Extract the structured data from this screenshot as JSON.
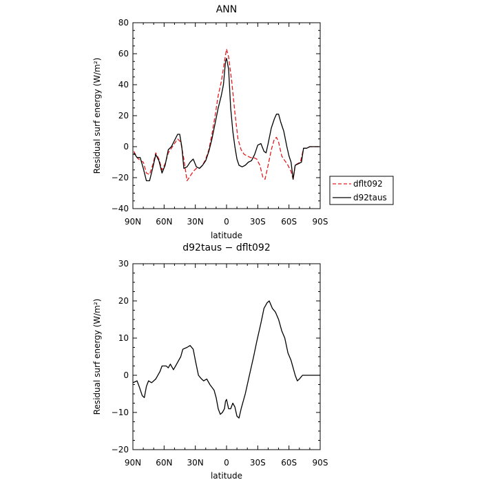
{
  "chart_data": [
    {
      "type": "line",
      "title": "ANN",
      "xlabel": "latitude",
      "ylabel": "Residual surf energy (W/m²)",
      "xlim": [
        90,
        -90
      ],
      "ylim": [
        -40,
        80
      ],
      "x_ticks": [
        {
          "value": 90,
          "label": "90N"
        },
        {
          "value": 60,
          "label": "60N"
        },
        {
          "value": 30,
          "label": "30N"
        },
        {
          "value": 0,
          "label": "0"
        },
        {
          "value": -30,
          "label": "30S"
        },
        {
          "value": -60,
          "label": "60S"
        },
        {
          "value": -90,
          "label": "90S"
        }
      ],
      "y_ticks": [
        -40,
        -20,
        0,
        20,
        40,
        60,
        80
      ],
      "legend": {
        "placement": "right, outside plot"
      },
      "series": [
        {
          "name": "dflt092",
          "color": "#e31a1c",
          "dash": "dashed",
          "points": [
            [
              89,
              -3
            ],
            [
              86,
              -7
            ],
            [
              83,
              -9
            ],
            [
              80,
              -10
            ],
            [
              77,
              -17
            ],
            [
              74,
              -18
            ],
            [
              71,
              -12
            ],
            [
              68,
              -4
            ],
            [
              65,
              -8
            ],
            [
              62,
              -15
            ],
            [
              59,
              -11
            ],
            [
              56,
              -4
            ],
            [
              53,
              -1
            ],
            [
              50,
              2
            ],
            [
              47,
              5
            ],
            [
              44,
              3
            ],
            [
              41,
              -8
            ],
            [
              38,
              -22
            ],
            [
              35,
              -19
            ],
            [
              32,
              -16
            ],
            [
              29,
              -14
            ],
            [
              26,
              -14
            ],
            [
              23,
              -12
            ],
            [
              20,
              -8
            ],
            [
              17,
              -2
            ],
            [
              14,
              8
            ],
            [
              11,
              20
            ],
            [
              8,
              33
            ],
            [
              5,
              42
            ],
            [
              2,
              55
            ],
            [
              0,
              63
            ],
            [
              -2,
              58
            ],
            [
              -5,
              42
            ],
            [
              -8,
              22
            ],
            [
              -11,
              5
            ],
            [
              -14,
              -2
            ],
            [
              -17,
              -5
            ],
            [
              -20,
              -6
            ],
            [
              -23,
              -7
            ],
            [
              -26,
              -7
            ],
            [
              -29,
              -8
            ],
            [
              -32,
              -12
            ],
            [
              -35,
              -20
            ],
            [
              -37,
              -21
            ],
            [
              -40,
              -12
            ],
            [
              -43,
              -2
            ],
            [
              -46,
              5
            ],
            [
              -48,
              6
            ],
            [
              -50,
              3
            ],
            [
              -53,
              -6
            ],
            [
              -56,
              -9
            ],
            [
              -59,
              -12
            ],
            [
              -62,
              -16
            ],
            [
              -64,
              -21
            ],
            [
              -66,
              -12
            ],
            [
              -68,
              -11
            ],
            [
              -71,
              -10
            ],
            [
              -74,
              -1
            ],
            [
              -77,
              -1
            ],
            [
              -80,
              0
            ],
            [
              -84,
              0
            ],
            [
              -87,
              0
            ],
            [
              -89,
              0
            ]
          ]
        },
        {
          "name": "d92taus",
          "color": "#000000",
          "dash": "solid",
          "points": [
            [
              89,
              -4
            ],
            [
              86,
              -7
            ],
            [
              83,
              -7
            ],
            [
              80,
              -14
            ],
            [
              77,
              -22
            ],
            [
              74,
              -22
            ],
            [
              71,
              -14
            ],
            [
              68,
              -5
            ],
            [
              65,
              -9
            ],
            [
              62,
              -17
            ],
            [
              59,
              -12
            ],
            [
              56,
              -2
            ],
            [
              53,
              0
            ],
            [
              50,
              4
            ],
            [
              47,
              8
            ],
            [
              45,
              8
            ],
            [
              43,
              0
            ],
            [
              41,
              -14
            ],
            [
              38,
              -13
            ],
            [
              35,
              -10
            ],
            [
              32,
              -8
            ],
            [
              29,
              -13
            ],
            [
              26,
              -14
            ],
            [
              23,
              -12
            ],
            [
              20,
              -9
            ],
            [
              17,
              -3
            ],
            [
              14,
              5
            ],
            [
              11,
              15
            ],
            [
              8,
              25
            ],
            [
              5,
              33
            ],
            [
              3,
              40
            ],
            [
              1,
              55
            ],
            [
              0,
              57
            ],
            [
              -2,
              50
            ],
            [
              -4,
              25
            ],
            [
              -6,
              10
            ],
            [
              -8,
              0
            ],
            [
              -10,
              -8
            ],
            [
              -12,
              -12
            ],
            [
              -15,
              -13
            ],
            [
              -18,
              -12
            ],
            [
              -21,
              -10
            ],
            [
              -24,
              -9
            ],
            [
              -27,
              -5
            ],
            [
              -30,
              1
            ],
            [
              -33,
              2
            ],
            [
              -36,
              -3
            ],
            [
              -38,
              -4
            ],
            [
              -40,
              2
            ],
            [
              -43,
              12
            ],
            [
              -46,
              18
            ],
            [
              -48,
              21
            ],
            [
              -50,
              21
            ],
            [
              -52,
              16
            ],
            [
              -55,
              10
            ],
            [
              -58,
              0
            ],
            [
              -60,
              -6
            ],
            [
              -62,
              -10
            ],
            [
              -64,
              -21
            ],
            [
              -66,
              -12
            ],
            [
              -69,
              -11
            ],
            [
              -72,
              -10
            ],
            [
              -74,
              -1
            ],
            [
              -77,
              -1
            ],
            [
              -80,
              0
            ],
            [
              -84,
              0
            ],
            [
              -87,
              0
            ],
            [
              -89,
              0
            ]
          ]
        }
      ]
    },
    {
      "type": "line",
      "title": "d92taus − dflt092",
      "xlabel": "latitude",
      "ylabel": "Residual surf energy (W/m²)",
      "xlim": [
        90,
        -90
      ],
      "ylim": [
        -20,
        30
      ],
      "x_ticks": [
        {
          "value": 90,
          "label": "90N"
        },
        {
          "value": 60,
          "label": "60N"
        },
        {
          "value": 30,
          "label": "30N"
        },
        {
          "value": 0,
          "label": "0"
        },
        {
          "value": -30,
          "label": "30S"
        },
        {
          "value": -60,
          "label": "60S"
        },
        {
          "value": -90,
          "label": "90S"
        }
      ],
      "y_ticks": [
        -20,
        -10,
        0,
        10,
        20,
        30
      ],
      "series": [
        {
          "color": "#000000",
          "dash": "solid",
          "points": [
            [
              90,
              -2
            ],
            [
              86,
              -1.5
            ],
            [
              84,
              -3
            ],
            [
              81,
              -5.5
            ],
            [
              79,
              -6
            ],
            [
              77,
              -3
            ],
            [
              75,
              -1.5
            ],
            [
              72,
              -2
            ],
            [
              68,
              -1
            ],
            [
              64,
              1
            ],
            [
              62,
              2.5
            ],
            [
              58,
              2.5
            ],
            [
              56,
              2
            ],
            [
              54,
              3
            ],
            [
              51,
              1.5
            ],
            [
              48,
              3
            ],
            [
              44,
              5
            ],
            [
              42,
              7
            ],
            [
              38,
              7.5
            ],
            [
              35,
              8
            ],
            [
              32,
              7
            ],
            [
              30,
              4
            ],
            [
              27,
              0
            ],
            [
              24,
              -1
            ],
            [
              22,
              -1.5
            ],
            [
              19,
              -1
            ],
            [
              16,
              -2.5
            ],
            [
              12,
              -4
            ],
            [
              10,
              -6
            ],
            [
              8,
              -9
            ],
            [
              6,
              -10.5
            ],
            [
              4,
              -10
            ],
            [
              2,
              -9
            ],
            [
              1,
              -7
            ],
            [
              0,
              -6.5
            ],
            [
              -2,
              -9
            ],
            [
              -4,
              -9
            ],
            [
              -6,
              -7.5
            ],
            [
              -8,
              -8.5
            ],
            [
              -10,
              -11
            ],
            [
              -12,
              -11.5
            ],
            [
              -14,
              -9
            ],
            [
              -18,
              -5
            ],
            [
              -22,
              0
            ],
            [
              -26,
              5
            ],
            [
              -29,
              9
            ],
            [
              -33,
              14
            ],
            [
              -36,
              18
            ],
            [
              -39,
              19.5
            ],
            [
              -41,
              20
            ],
            [
              -44,
              18
            ],
            [
              -47,
              17
            ],
            [
              -50,
              15
            ],
            [
              -53,
              12
            ],
            [
              -56,
              10
            ],
            [
              -59,
              6
            ],
            [
              -62,
              4
            ],
            [
              -64,
              2
            ],
            [
              -66,
              0
            ],
            [
              -68,
              -1.5
            ],
            [
              -70,
              -1
            ],
            [
              -73,
              0
            ],
            [
              -76,
              0
            ],
            [
              -80,
              0
            ],
            [
              -85,
              0
            ],
            [
              -90,
              0
            ]
          ]
        }
      ]
    }
  ]
}
